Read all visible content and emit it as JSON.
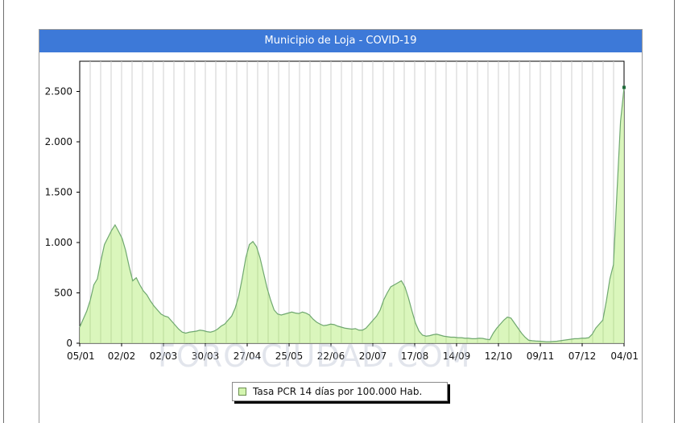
{
  "colors": {
    "title_bar": "#3d79d8",
    "area_fill": "#d4f5b0",
    "area_line": "#6fa86f",
    "grid": "#cfcfcf",
    "last_point": "#1f6b3a"
  },
  "watermark": "FORO-CIUDAD.COM",
  "chart_data": {
    "type": "area",
    "title": "Municipio de Loja - COVID-19",
    "xlabel": "",
    "ylabel": "",
    "ylim": [
      0,
      2800
    ],
    "yticks": [
      0,
      500,
      1000,
      1500,
      2000,
      2500
    ],
    "ytick_labels": [
      "0",
      "500",
      "1.000",
      "1.500",
      "2.000",
      "2.500"
    ],
    "xtick_labels": [
      "05/01",
      "02/02",
      "02/03",
      "30/03",
      "27/04",
      "25/05",
      "22/06",
      "20/07",
      "17/08",
      "14/09",
      "12/10",
      "09/11",
      "07/12",
      "04/01"
    ],
    "grid": true,
    "legend_position": "bottom-center",
    "series": [
      {
        "name": "Tasa PCR 14 días por 100.000 Hab.",
        "values": [
          160,
          240,
          320,
          430,
          580,
          640,
          820,
          980,
          1050,
          1120,
          1175,
          1110,
          1040,
          920,
          760,
          620,
          650,
          580,
          520,
          480,
          420,
          370,
          330,
          290,
          270,
          260,
          220,
          180,
          140,
          110,
          100,
          110,
          115,
          120,
          130,
          125,
          115,
          110,
          120,
          140,
          170,
          190,
          230,
          270,
          350,
          470,
          650,
          850,
          980,
          1010,
          960,
          850,
          700,
          550,
          430,
          330,
          290,
          280,
          290,
          300,
          310,
          300,
          295,
          310,
          300,
          280,
          240,
          210,
          190,
          175,
          180,
          190,
          185,
          170,
          160,
          150,
          145,
          140,
          145,
          130,
          130,
          150,
          190,
          230,
          270,
          330,
          430,
          500,
          560,
          580,
          600,
          620,
          560,
          450,
          320,
          200,
          120,
          80,
          70,
          75,
          85,
          90,
          80,
          70,
          65,
          60,
          60,
          55,
          55,
          50,
          50,
          45,
          45,
          50,
          48,
          40,
          35,
          100,
          150,
          190,
          230,
          260,
          250,
          200,
          150,
          100,
          60,
          30,
          25,
          22,
          20,
          18,
          15,
          15,
          18,
          20,
          25,
          30,
          35,
          40,
          45,
          45,
          50,
          50,
          55,
          90,
          150,
          190,
          230,
          420,
          640,
          780,
          1500,
          2200,
          2540
        ]
      }
    ]
  }
}
